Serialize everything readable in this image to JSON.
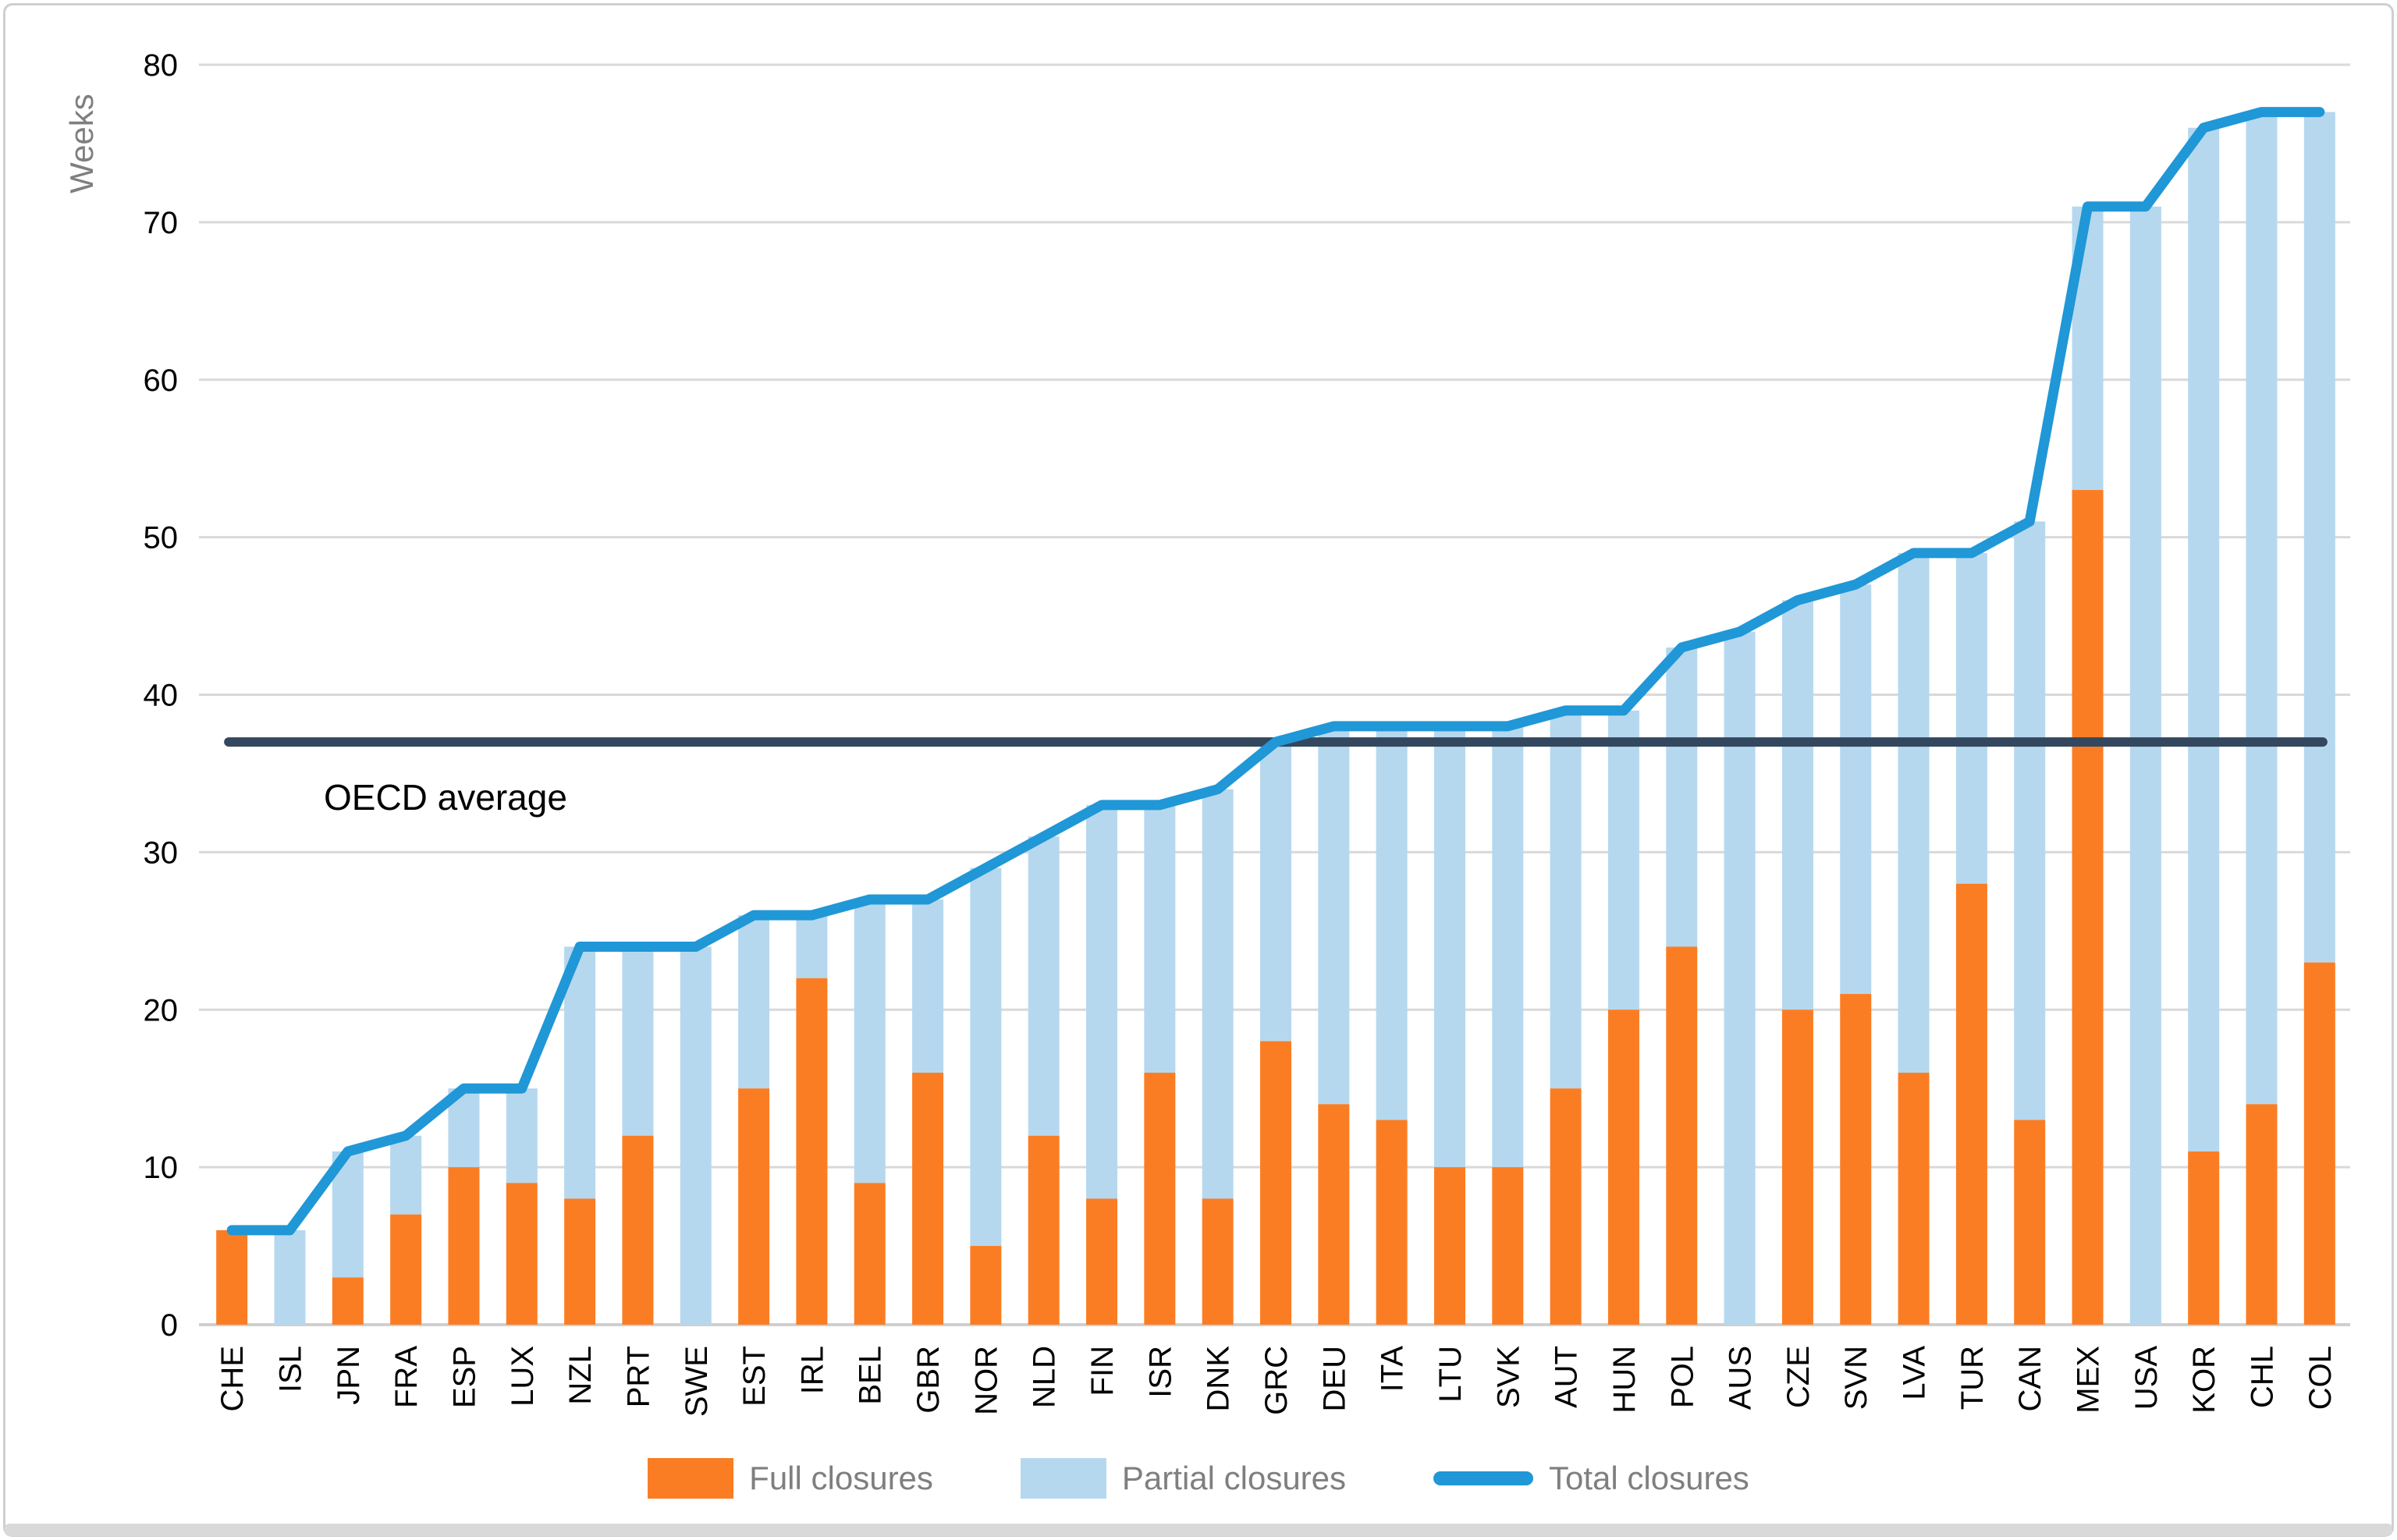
{
  "frame": {
    "background": "#ffffff",
    "border_color": "#cfcfcf",
    "bottom_strip_color": "#d9d9d9"
  },
  "y_axis": {
    "label": "Weeks",
    "ticks": [
      "0",
      "10",
      "20",
      "30",
      "40",
      "50",
      "60",
      "70",
      "80"
    ],
    "min": 0,
    "max": 80,
    "tick_color": "#000000",
    "label_color": "#7f7f7f"
  },
  "x_axis": {
    "label_color": "#000000"
  },
  "grid": {
    "color": "#d9d9d9"
  },
  "annotation": {
    "label": "OECD average",
    "value": 37,
    "line_color": "#33485e",
    "text_color": "#000000"
  },
  "chart_data": {
    "type": "bar",
    "stacked": true,
    "title": "",
    "ylabel": "Weeks",
    "ylim": [
      0,
      80
    ],
    "grid": true,
    "legend_position": "bottom",
    "categories": [
      "CHE",
      "ISL",
      "JPN",
      "FRA",
      "ESP",
      "LUX",
      "NZL",
      "PRT",
      "SWE",
      "EST",
      "IRL",
      "BEL",
      "GBR",
      "NOR",
      "NLD",
      "FIN",
      "ISR",
      "DNK",
      "GRC",
      "DEU",
      "ITA",
      "LTU",
      "SVK",
      "AUT",
      "HUN",
      "POL",
      "AUS",
      "CZE",
      "SVN",
      "LVA",
      "TUR",
      "CAN",
      "MEX",
      "USA",
      "KOR",
      "CHL",
      "COL"
    ],
    "series": [
      {
        "name": "Full closures",
        "type": "bar",
        "color": "#fb7d23",
        "values": [
          6,
          0,
          3,
          7,
          10,
          9,
          8,
          12,
          0,
          15,
          22,
          9,
          16,
          5,
          12,
          8,
          16,
          8,
          18,
          14,
          13,
          10,
          10,
          15,
          20,
          24,
          0,
          20,
          21,
          16,
          28,
          13,
          53,
          0,
          11,
          14,
          23
        ]
      },
      {
        "name": "Partial closures",
        "type": "bar",
        "color": "#b5d8ef",
        "values": [
          0,
          6,
          8,
          5,
          5,
          6,
          16,
          12,
          24,
          11,
          4,
          18,
          11,
          24,
          19,
          25,
          17,
          26,
          19,
          24,
          25,
          28,
          28,
          24,
          19,
          19,
          44,
          26,
          26,
          33,
          21,
          38,
          18,
          71,
          65,
          63,
          54
        ]
      },
      {
        "name": "Total closures",
        "type": "line",
        "color": "#2097d6",
        "values": [
          6,
          6,
          11,
          12,
          15,
          15,
          24,
          24,
          24,
          26,
          26,
          27,
          27,
          29,
          31,
          33,
          33,
          34,
          37,
          38,
          38,
          38,
          38,
          39,
          39,
          43,
          44,
          46,
          47,
          49,
          49,
          51,
          71,
          71,
          76,
          77,
          77
        ]
      }
    ],
    "oecd_average": 37
  }
}
